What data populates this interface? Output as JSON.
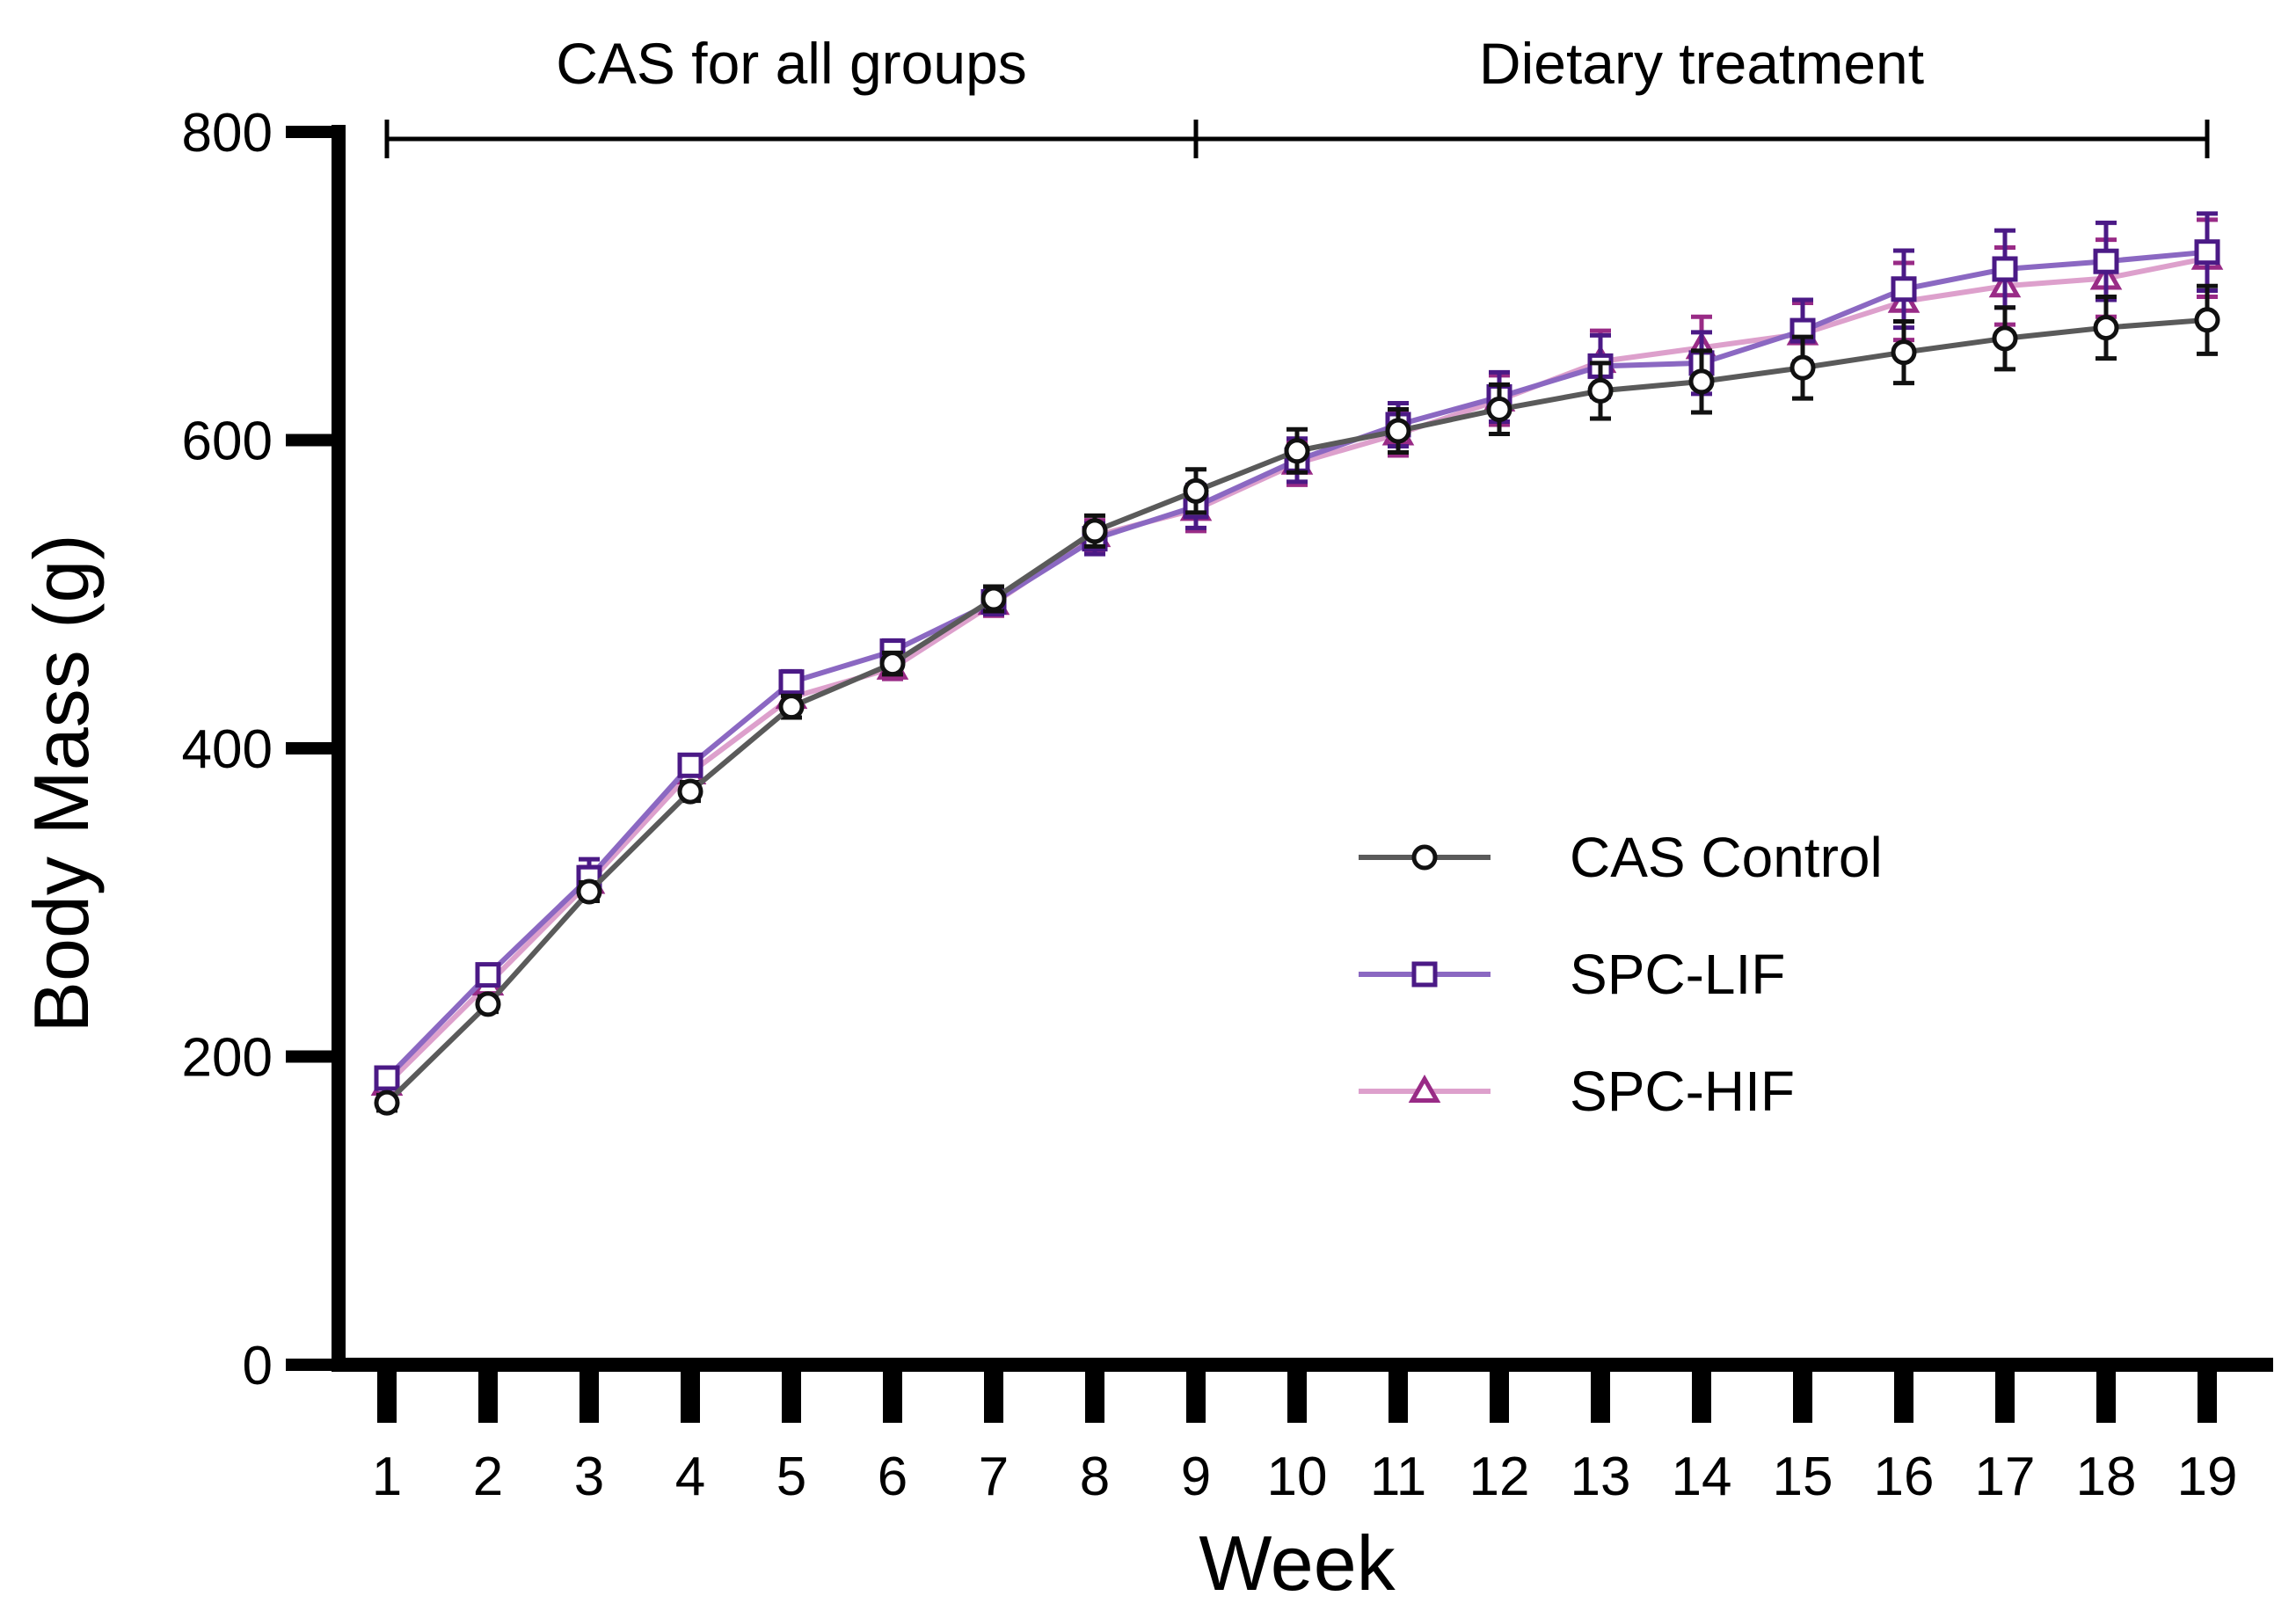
{
  "chart_data": {
    "type": "line",
    "title": "",
    "xlabel": "Week",
    "ylabel": "Body Mass (g)",
    "ylim": [
      0,
      800
    ],
    "yticks": [
      0,
      200,
      400,
      600,
      800
    ],
    "x": [
      1,
      2,
      3,
      4,
      5,
      6,
      7,
      8,
      9,
      10,
      11,
      12,
      13,
      14,
      15,
      16,
      17,
      18,
      19
    ],
    "grid": false,
    "legend_position": "right-center",
    "series": [
      {
        "name": "CAS Control",
        "marker": "circle",
        "line_color": "#5a5a5a",
        "marker_color": "#111111",
        "values": [
          170,
          234,
          307,
          372,
          427,
          455,
          497,
          541,
          567,
          593,
          606,
          620,
          632,
          638,
          647,
          657,
          666,
          673,
          678
        ],
        "errors": [
          5,
          5,
          6,
          6,
          7,
          7,
          8,
          10,
          14,
          14,
          14,
          16,
          18,
          20,
          20,
          20,
          20,
          20,
          22
        ]
      },
      {
        "name": "SPC-LIF",
        "marker": "square",
        "line_color": "#8b68c2",
        "marker_color": "#4b1a86",
        "values": [
          186,
          253,
          316,
          389,
          443,
          463,
          495,
          536,
          557,
          587,
          610,
          628,
          648,
          650,
          671,
          698,
          711,
          716,
          722
        ],
        "errors": [
          6,
          6,
          12,
          6,
          7,
          7,
          8,
          10,
          14,
          14,
          14,
          16,
          20,
          20,
          20,
          25,
          25,
          25,
          25
        ]
      },
      {
        "name": "SPC-HIF",
        "marker": "triangle",
        "line_color": "#dda0cc",
        "marker_color": "#992b86",
        "values": [
          182,
          247,
          313,
          384,
          433,
          452,
          494,
          538,
          555,
          585,
          604,
          626,
          651,
          660,
          669,
          690,
          700,
          705,
          718
        ],
        "errors": [
          6,
          6,
          10,
          6,
          7,
          7,
          8,
          10,
          14,
          14,
          14,
          16,
          20,
          20,
          20,
          25,
          25,
          25,
          25
        ]
      }
    ],
    "annotations": [
      {
        "label": "CAS for all groups",
        "from_week": 1,
        "to_week": 9
      },
      {
        "label": "Dietary treatment",
        "from_week": 9,
        "to_week": 19
      }
    ]
  }
}
